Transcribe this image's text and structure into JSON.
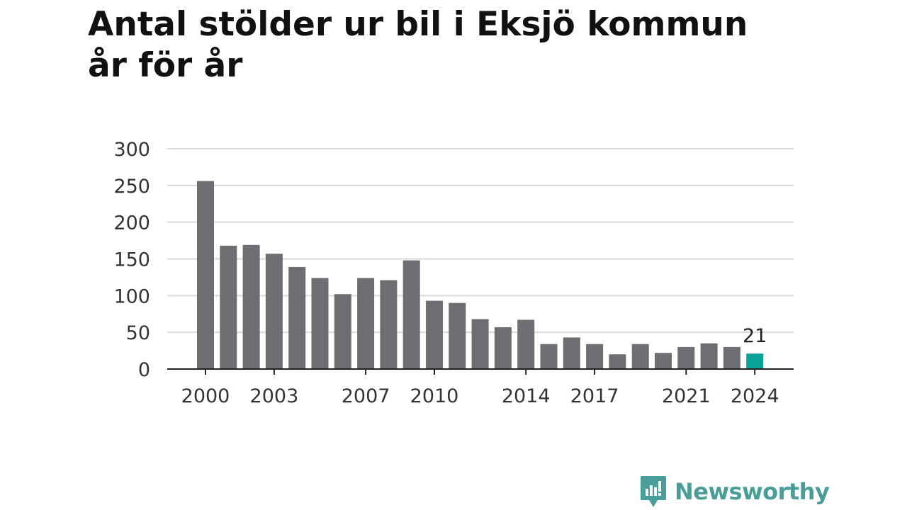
{
  "chart_data": {
    "type": "bar",
    "title": "Antal stölder ur bil i Eksjö kommun år för år",
    "xlabel": "",
    "ylabel": "",
    "ylim": [
      0,
      300
    ],
    "y_ticks": [
      0,
      50,
      100,
      150,
      200,
      250,
      300
    ],
    "x_tick_labels": [
      "2000",
      "2003",
      "2007",
      "2010",
      "2014",
      "2017",
      "2021",
      "2024"
    ],
    "categories": [
      "2000",
      "2001",
      "2002",
      "2003",
      "2004",
      "2005",
      "2006",
      "2007",
      "2008",
      "2009",
      "2010",
      "2011",
      "2012",
      "2013",
      "2014",
      "2015",
      "2016",
      "2017",
      "2018",
      "2019",
      "2020",
      "2021",
      "2022",
      "2023",
      "2024"
    ],
    "values": [
      256,
      168,
      169,
      157,
      139,
      124,
      102,
      124,
      121,
      148,
      93,
      90,
      68,
      57,
      67,
      34,
      43,
      34,
      20,
      34,
      22,
      30,
      35,
      30,
      21
    ],
    "highlight": {
      "category": "2024",
      "label": "21"
    },
    "grid": true,
    "colors": {
      "bar": "#6e6d72",
      "highlight": "#0aa39a",
      "grid": "#d9d9d9",
      "axis": "#222222"
    }
  },
  "brand": {
    "name": "Newsworthy",
    "icon": "chart-speech-bubble-icon",
    "color": "#4a9e9a"
  }
}
